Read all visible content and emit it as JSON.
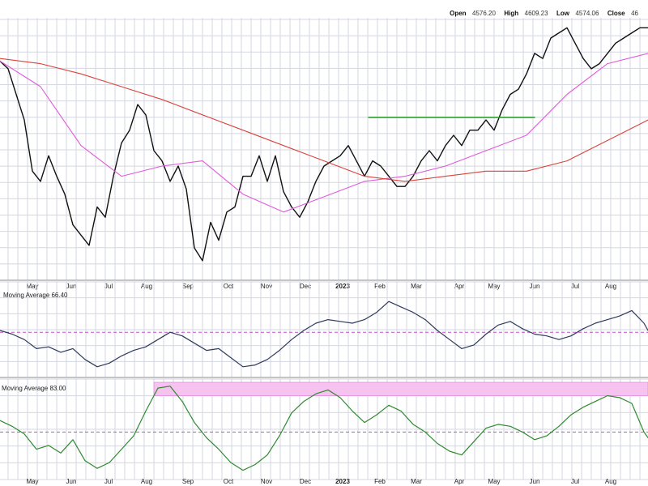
{
  "header": {
    "open_label": "Open",
    "open_value": "4576.20",
    "high_label": "High",
    "high_value": "4609.23",
    "low_label": "Low",
    "low_value": "4574.06",
    "close_label": "Close",
    "close_value": "46"
  },
  "colors": {
    "price": "#111111",
    "ma_short": "#e05adb",
    "ma_long": "#d9433b",
    "resistance": "#2ea12e",
    "osc1": "#2f3a5c",
    "osc1_ref": "#c44ccc",
    "osc2": "#2f8a2f",
    "osc2_ref": "#c44ccc",
    "band": "#f6c2ef",
    "grid": "#d4d7e0",
    "background": "#ffffff",
    "panel_border": "#888888"
  },
  "panels": {
    "osc1_label": "Moving Average 66.40",
    "osc2_label": "Moving Average 83.00"
  },
  "chart_data": [
    {
      "type": "line",
      "panel": "price",
      "title": "",
      "x_tick_labels": [
        "May",
        "Jun",
        "Jul",
        "Aug",
        "Sep",
        "Oct",
        "Nov",
        "Dec",
        "2023",
        "Feb",
        "Mar",
        "Apr",
        "May",
        "Jun",
        "Jul",
        "Aug"
      ],
      "ylim": [
        0,
        100
      ],
      "x_range": [
        0,
        16
      ],
      "series": [
        {
          "key": "price",
          "x": [
            0,
            0.2,
            0.4,
            0.6,
            0.8,
            1,
            1.2,
            1.4,
            1.6,
            1.8,
            2,
            2.2,
            2.4,
            2.6,
            2.8,
            3,
            3.2,
            3.4,
            3.6,
            3.8,
            4,
            4.2,
            4.4,
            4.6,
            4.8,
            5,
            5.2,
            5.4,
            5.6,
            5.8,
            6,
            6.2,
            6.4,
            6.6,
            6.8,
            7,
            7.2,
            7.4,
            7.6,
            7.8,
            8,
            8.2,
            8.4,
            8.6,
            8.8,
            9,
            9.2,
            9.4,
            9.6,
            9.8,
            10,
            10.2,
            10.4,
            10.6,
            10.8,
            11,
            11.2,
            11.4,
            11.6,
            11.8,
            12,
            12.2,
            12.4,
            12.6,
            12.8,
            13,
            13.2,
            13.4,
            13.6,
            13.8,
            14,
            14.2,
            14.4,
            14.6,
            14.8,
            15,
            15.2,
            15.4,
            15.6,
            15.8,
            16
          ],
          "values": [
            85,
            82,
            72,
            62,
            42,
            38,
            48,
            40,
            33,
            21,
            17,
            13,
            28,
            24,
            40,
            53,
            58,
            68,
            64,
            50,
            46,
            38,
            44,
            35,
            12,
            7,
            22,
            15,
            26,
            28,
            40,
            40,
            48,
            38,
            48,
            34,
            28,
            24,
            30,
            38,
            44,
            46,
            48,
            52,
            46,
            40,
            46,
            44,
            40,
            36,
            36,
            40,
            46,
            50,
            46,
            52,
            56,
            52,
            58,
            58,
            62,
            58,
            66,
            72,
            74,
            80,
            88,
            86,
            94,
            96,
            98,
            92,
            86,
            82,
            84,
            88,
            92,
            94,
            96,
            98,
            98
          ],
          "type": "line"
        },
        {
          "key": "ma_short",
          "x": [
            0,
            1,
            2,
            3,
            4,
            5,
            6,
            7,
            8,
            9,
            10,
            11,
            12,
            13,
            14,
            15,
            16
          ],
          "values": [
            85,
            75,
            52,
            40,
            44,
            46,
            33,
            26,
            32,
            38,
            40,
            44,
            50,
            56,
            72,
            84,
            88
          ],
          "type": "line"
        },
        {
          "key": "ma_long",
          "x": [
            0,
            1,
            2,
            3,
            4,
            5,
            6,
            7,
            8,
            9,
            10,
            11,
            12,
            13,
            14,
            15,
            16
          ],
          "values": [
            86,
            84,
            80,
            75,
            70,
            64,
            58,
            52,
            46,
            40,
            38,
            40,
            42,
            42,
            46,
            54,
            62
          ],
          "type": "line"
        },
        {
          "key": "resistance",
          "x": [
            9.1,
            13.2
          ],
          "values": [
            63,
            63
          ],
          "type": "line"
        }
      ]
    },
    {
      "type": "line",
      "panel": "osc1",
      "ylim": [
        0,
        100
      ],
      "x_range": [
        0,
        16
      ],
      "reference_level": 48,
      "series": [
        {
          "key": "osc1",
          "x": [
            0,
            0.3,
            0.6,
            0.9,
            1.2,
            1.5,
            1.8,
            2.1,
            2.4,
            2.7,
            3,
            3.3,
            3.6,
            3.9,
            4.2,
            4.5,
            4.8,
            5.1,
            5.4,
            5.7,
            6,
            6.3,
            6.6,
            6.9,
            7.2,
            7.5,
            7.8,
            8.1,
            8.4,
            8.7,
            9,
            9.3,
            9.6,
            9.9,
            10.2,
            10.5,
            10.8,
            11.1,
            11.4,
            11.7,
            12,
            12.3,
            12.6,
            12.9,
            13.2,
            13.5,
            13.8,
            14.1,
            14.4,
            14.7,
            15,
            15.3,
            15.6,
            15.9,
            16
          ],
          "values": [
            50,
            46,
            40,
            30,
            32,
            26,
            30,
            18,
            10,
            14,
            22,
            28,
            32,
            40,
            48,
            44,
            36,
            28,
            30,
            20,
            10,
            12,
            18,
            28,
            40,
            50,
            58,
            62,
            60,
            58,
            62,
            70,
            82,
            76,
            70,
            62,
            50,
            40,
            30,
            34,
            46,
            56,
            60,
            52,
            46,
            44,
            40,
            44,
            52,
            58,
            62,
            66,
            72,
            58,
            50
          ],
          "type": "line"
        }
      ]
    },
    {
      "type": "line",
      "panel": "osc2",
      "ylim": [
        0,
        100
      ],
      "x_range": [
        0,
        16
      ],
      "reference_level": 48,
      "band": [
        86,
        100
      ],
      "series": [
        {
          "key": "osc2",
          "x": [
            0,
            0.3,
            0.6,
            0.9,
            1.2,
            1.5,
            1.8,
            2.1,
            2.4,
            2.7,
            3,
            3.3,
            3.6,
            3.9,
            4.2,
            4.5,
            4.8,
            5.1,
            5.4,
            5.7,
            6,
            6.3,
            6.6,
            6.9,
            7.2,
            7.5,
            7.8,
            8.1,
            8.4,
            8.7,
            9,
            9.3,
            9.6,
            9.9,
            10.2,
            10.5,
            10.8,
            11.1,
            11.4,
            11.7,
            12,
            12.3,
            12.6,
            12.9,
            13.2,
            13.5,
            13.8,
            14.1,
            14.4,
            14.7,
            15,
            15.3,
            15.6,
            15.9,
            16
          ],
          "values": [
            60,
            54,
            46,
            30,
            34,
            26,
            40,
            18,
            10,
            16,
            30,
            44,
            70,
            94,
            96,
            80,
            58,
            42,
            30,
            16,
            8,
            14,
            24,
            44,
            68,
            80,
            88,
            92,
            84,
            70,
            58,
            66,
            76,
            70,
            56,
            48,
            36,
            28,
            24,
            38,
            52,
            56,
            54,
            48,
            40,
            44,
            54,
            66,
            74,
            80,
            86,
            84,
            78,
            48,
            42
          ],
          "type": "line"
        }
      ]
    }
  ]
}
